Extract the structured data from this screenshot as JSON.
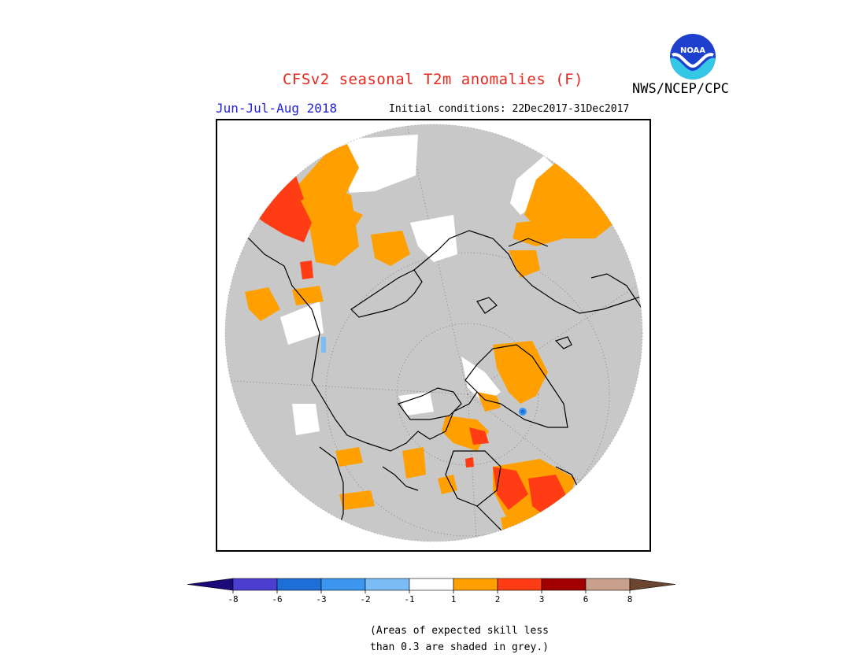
{
  "title": "CFSv2 seasonal T2m anomalies (F)",
  "season": "Jun-Jul-Aug 2018",
  "initial_conditions": "Initial conditions: 22Dec2017-31Dec2017",
  "credit": "NWS/NCEP/CPC",
  "logo_text": "NOAA",
  "colors": {
    "title": "#e8281e",
    "season": "#2222dd",
    "grey_low_skill": "#c8c8c8",
    "land_outline": "#000000"
  },
  "legend": {
    "tick_labels": [
      "-8",
      "-6",
      "-3",
      "-2",
      "-1",
      "1",
      "2",
      "3",
      "6",
      "8"
    ],
    "bins": [
      {
        "range": "< -8",
        "color": "#1a0a7a"
      },
      {
        "range": "-8 to -6",
        "color": "#4b3fd0"
      },
      {
        "range": "-6 to -3",
        "color": "#1e6ed8"
      },
      {
        "range": "-3 to -2",
        "color": "#3c96f0"
      },
      {
        "range": "-2 to -1",
        "color": "#7cbcf4"
      },
      {
        "range": "-1 to 1",
        "color": "#ffffff"
      },
      {
        "range": "1 to 2",
        "color": "#ffa000"
      },
      {
        "range": "2 to 3",
        "color": "#ff3c14"
      },
      {
        "range": "3 to 6",
        "color": "#a00000"
      },
      {
        "range": "6 to 8",
        "color": "#c8a08c"
      },
      {
        "range": "> 8",
        "color": "#6b4530"
      }
    ]
  },
  "note_lines": [
    "(Areas of expected skill less",
    "than 0.3 are shaded in grey.)"
  ]
}
